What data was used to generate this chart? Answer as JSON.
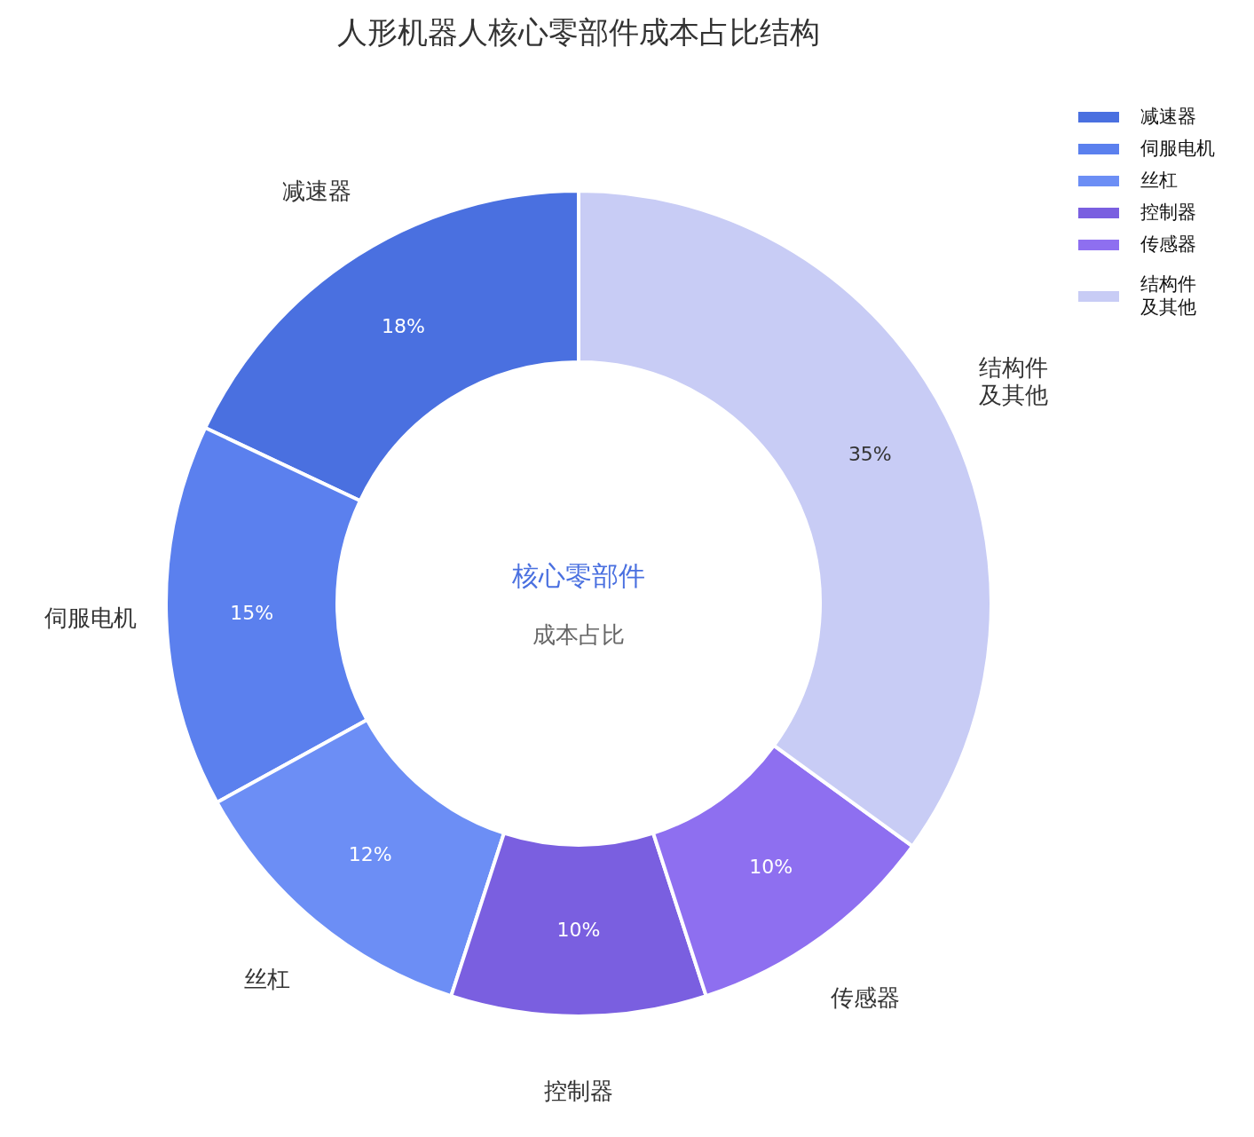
{
  "chart_data": {
    "type": "donut",
    "title": "人形机器人核心零部件成本占比结构",
    "categories": [
      "减速器",
      "伺服电机",
      "丝杠",
      "控制器",
      "传感器",
      "结构件及其他"
    ],
    "values": [
      18,
      15,
      12,
      10,
      10,
      35
    ],
    "colors": [
      "#4a70e0",
      "#5b80ee",
      "#6c8ef5",
      "#7a5fe0",
      "#8e6ff0",
      "#c8ccf5"
    ],
    "value_labels": [
      "18%",
      "15%",
      "12%",
      "10%",
      "10%",
      "35%"
    ],
    "annotations": [
      "核心零部件",
      "成本占比"
    ],
    "legend": "top right"
  }
}
